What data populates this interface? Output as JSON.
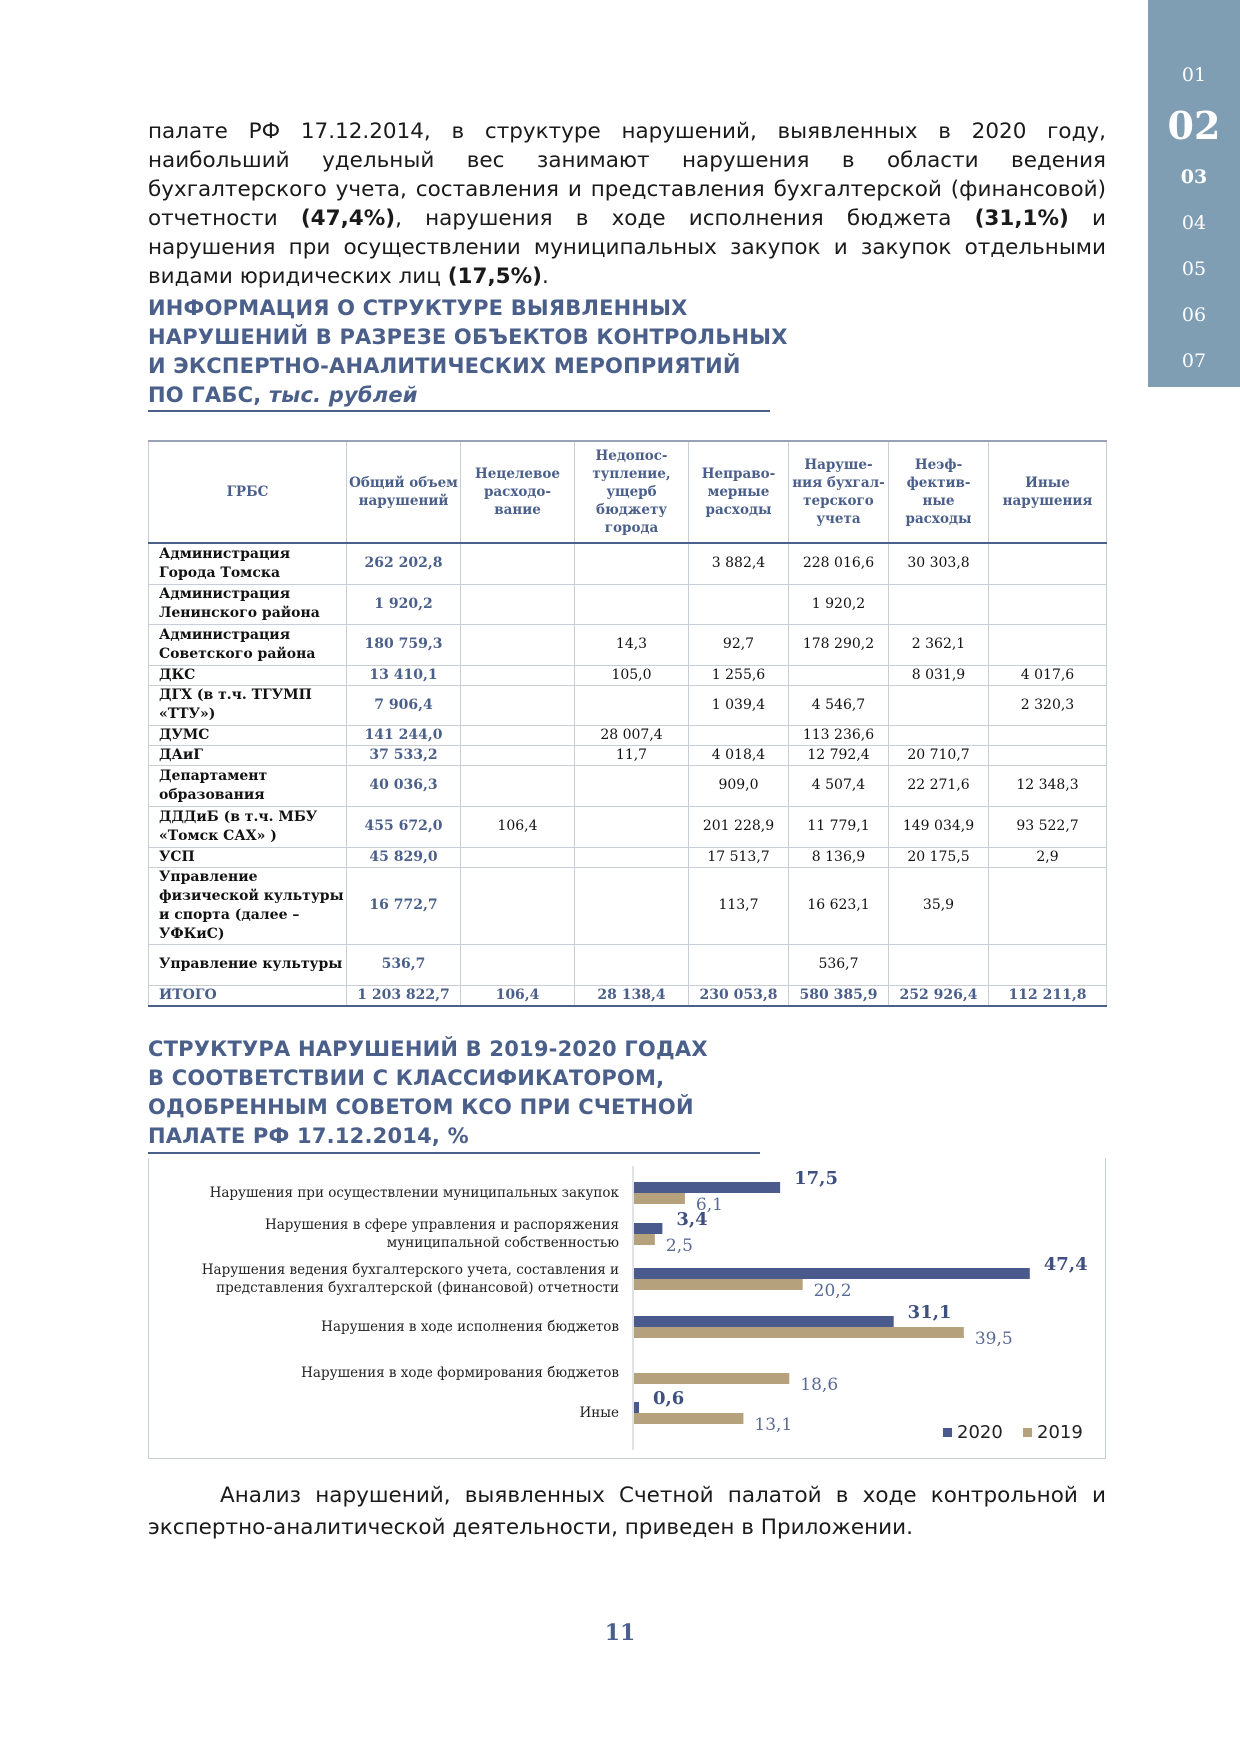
{
  "nav": {
    "items": [
      "01",
      "02",
      "03",
      "04",
      "05",
      "06",
      "07"
    ],
    "active": "02"
  },
  "intro": {
    "p1": "палате РФ 17.12.2014, в структуре нарушений, выявленных в 2020 году, наибольший удельный вес занимают нарушения в области ведения бухгалтерского учета, составления и представления бухгалтерской (финансовой) отчетности ",
    "v1": "(47,4%)",
    "p2": ", нарушения в ходе исполнения бюджета ",
    "v2": "(31,1%)",
    "p3": " и нарушения при осуществлении муниципальных закупок и закупок отдельными видами юридических лиц ",
    "v3": "(17,5%)",
    "p4": "."
  },
  "table_section": {
    "title_lines": [
      "ИНФОРМАЦИЯ О СТРУКТУРЕ ВЫЯВЛЕННЫХ",
      "НАРУШЕНИЙ В РАЗРЕЗЕ ОБЪЕКТОВ КОНТРОЛЬНЫХ",
      "И ЭКСПЕРТНО-АНАЛИТИЧЕСКИХ МЕРОПРИЯТИЙ"
    ],
    "title_last": "ПО ГАБС, ",
    "unit": "тыс. рублей"
  },
  "table": {
    "headers": [
      "ГРБС",
      "Общий объем нарушений",
      "Нецелевое расходо- вание",
      "Недопос- тупление, ущерб бюджету города",
      "Неправо- мерные расходы",
      "Наруше- ния бухгал- терского учета",
      "Неэф- фектив- ные расходы",
      "Иные нарушения"
    ],
    "rows": [
      [
        "Администрация Города Томска",
        "262 202,8",
        "",
        "",
        "3 882,4",
        "228 016,6",
        "30 303,8",
        ""
      ],
      [
        "Администрация Ленинского района",
        "1 920,2",
        "",
        "",
        "",
        "1 920,2",
        "",
        ""
      ],
      [
        "Администрация Советского района",
        "180 759,3",
        "",
        "14,3",
        "92,7",
        "178 290,2",
        "2 362,1",
        ""
      ],
      [
        "ДКС",
        "13 410,1",
        "",
        "105,0",
        "1 255,6",
        "",
        "8 031,9",
        "4 017,6"
      ],
      [
        "ДГХ (в т.ч. ТГУМП «ТТУ»)",
        "7 906,4",
        "",
        "",
        "1 039,4",
        "4 546,7",
        "",
        "2 320,3"
      ],
      [
        "ДУМС",
        "141 244,0",
        "",
        "28 007,4",
        "",
        "113 236,6",
        "",
        ""
      ],
      [
        "ДАиГ",
        "37 533,2",
        "",
        "11,7",
        "4 018,4",
        "12 792,4",
        "20 710,7",
        ""
      ],
      [
        "Департамент образования",
        "40 036,3",
        "",
        "",
        "909,0",
        "4 507,4",
        "22 271,6",
        "12 348,3"
      ],
      [
        "ДДДиБ (в т.ч. МБУ «Томск САХ» )",
        "455 672,0",
        "106,4",
        "",
        "201 228,9",
        "11 779,1",
        "149 034,9",
        "93 522,7"
      ],
      [
        "УСП",
        "45 829,0",
        "",
        "",
        "17 513,7",
        "8 136,9",
        "20 175,5",
        "2,9"
      ],
      [
        "Управление физической культуры и спорта (далее – УФКиС)",
        "16 772,7",
        "",
        "",
        "113,7",
        "16 623,1",
        "35,9",
        ""
      ],
      [
        "Управление культуры",
        "536,7",
        "",
        "",
        "",
        "536,7",
        "",
        ""
      ]
    ],
    "total": [
      "ИТОГО",
      "1 203 822,7",
      "106,4",
      "28 138,4",
      "230 053,8",
      "580 385,9",
      "252 926,4",
      "112 211,8"
    ]
  },
  "chart_section": {
    "title_lines": [
      "СТРУКТУРА НАРУШЕНИЙ В 2019-2020 ГОДАХ",
      "В СООТВЕТСТВИИ С КЛАССИФИКАТОРОМ,",
      "ОДОБРЕННЫМ СОВЕТОМ КСО ПРИ СЧЕТНОЙ",
      "ПАЛАТЕ РФ 17.12.2014, %"
    ]
  },
  "chart_data": {
    "type": "bar",
    "orientation": "horizontal",
    "categories": [
      "Нарушения при осуществлении муниципальных закупок",
      "Нарушения в сфере управления и распоряжения муниципальной собственностью",
      "Нарушения ведения бухгалтерского учета, составления и представления бухгалтерской (финансовой) отчетности",
      "Нарушения в ходе исполнения бюджетов",
      "Нарушения в ходе формирования бюджетов",
      "Иные"
    ],
    "category_lines": [
      [
        "Нарушения при осуществлении муниципальных закупок"
      ],
      [
        "Нарушения в сфере управления и распоряжения",
        "муниципальной собственностью"
      ],
      [
        "Нарушения ведения бухгалтерского учета, составления и",
        "представления бухгалтерской (финансовой) отчетности"
      ],
      [
        "Нарушения в ходе исполнения бюджетов"
      ],
      [
        "Нарушения в ходе формирования бюджетов"
      ],
      [
        "Иные"
      ]
    ],
    "series": [
      {
        "name": "2020",
        "color": "#4a5a8c",
        "values": [
          17.5,
          3.4,
          47.4,
          31.1,
          null,
          0.6
        ],
        "labels": [
          "17,5",
          "3,4",
          "47,4",
          "31,1",
          "",
          "0,6"
        ]
      },
      {
        "name": "2019",
        "color": "#b5a27c",
        "values": [
          6.1,
          2.5,
          20.2,
          39.5,
          18.6,
          13.1
        ],
        "labels": [
          "6,1",
          "2,5",
          "20,2",
          "39,5",
          "18,6",
          "13,1"
        ]
      }
    ],
    "xlim": [
      0,
      50
    ],
    "legend": "bottom-right",
    "grid": false
  },
  "closing": "Анализ нарушений, выявленных Счетной палатой в ходе контрольной и экспертно-аналитической деятельности, приведен в Приложении.",
  "page_number": "11"
}
